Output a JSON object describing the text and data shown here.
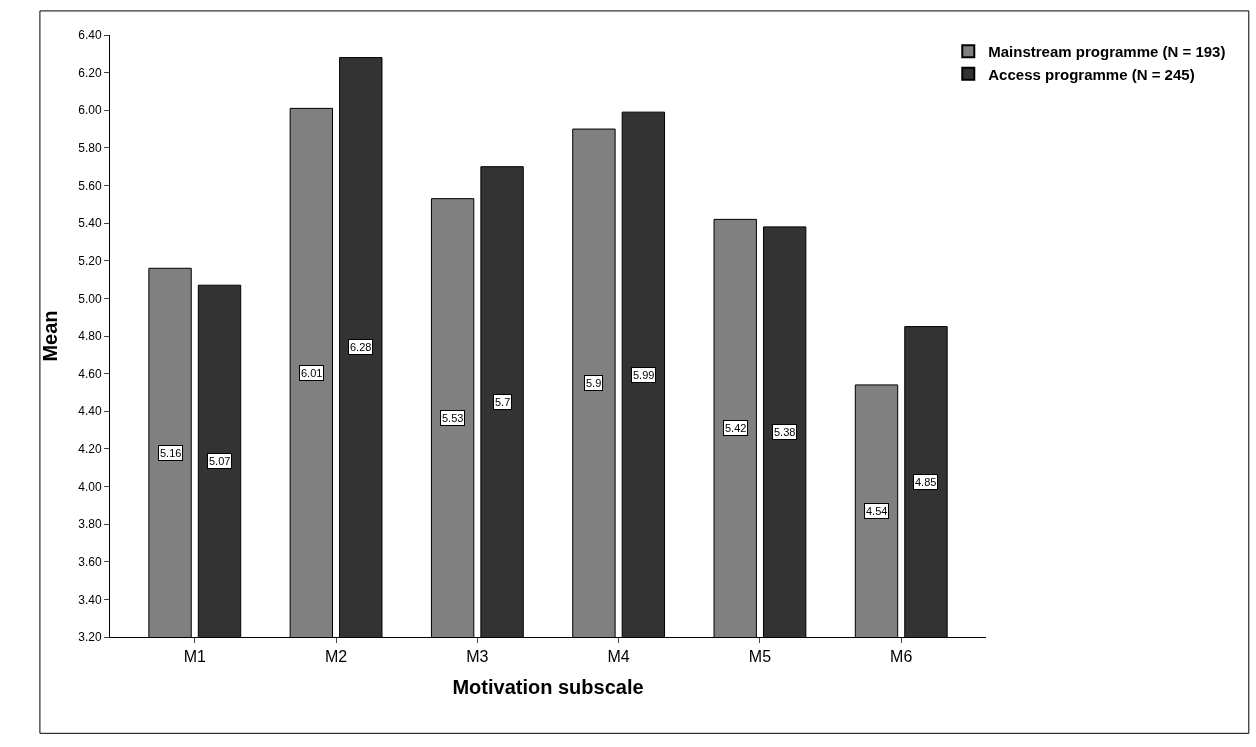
{
  "chart_data": {
    "type": "bar",
    "xlabel": "Motivation subscale",
    "ylabel": "Mean",
    "categories": [
      "M1",
      "M2",
      "M3",
      "M4",
      "M5",
      "M6"
    ],
    "series": [
      {
        "name": "Mainstream programme (N = 193)",
        "color": "#808080",
        "values": [
          5.16,
          6.01,
          5.53,
          5.9,
          5.42,
          4.54
        ]
      },
      {
        "name": "Access programme (N = 245)",
        "color": "#333333",
        "values": [
          5.07,
          6.28,
          5.7,
          5.99,
          5.38,
          4.85
        ]
      }
    ],
    "ylim": [
      3.2,
      6.4
    ],
    "yticks": [
      {
        "value": 3.2,
        "label": "3.20"
      },
      {
        "value": 3.4,
        "label": "3.40"
      },
      {
        "value": 3.6,
        "label": "3.60"
      },
      {
        "value": 3.8,
        "label": "3.80"
      },
      {
        "value": 4.0,
        "label": "4.00"
      },
      {
        "value": 4.2,
        "label": "4.20"
      },
      {
        "value": 4.4,
        "label": "4.40"
      },
      {
        "value": 4.6,
        "label": "4.60"
      },
      {
        "value": 4.8,
        "label": "4.80"
      },
      {
        "value": 5.0,
        "label": "5.00"
      },
      {
        "value": 5.2,
        "label": "5.20"
      },
      {
        "value": 5.4,
        "label": "5.40"
      },
      {
        "value": 5.6,
        "label": "5.60"
      },
      {
        "value": 5.8,
        "label": "5.80"
      },
      {
        "value": 6.0,
        "label": "6.00"
      },
      {
        "value": 6.2,
        "label": "6.20"
      },
      {
        "value": 6.4,
        "label": "6.40"
      }
    ],
    "data_labels": true,
    "legend": "top right"
  }
}
